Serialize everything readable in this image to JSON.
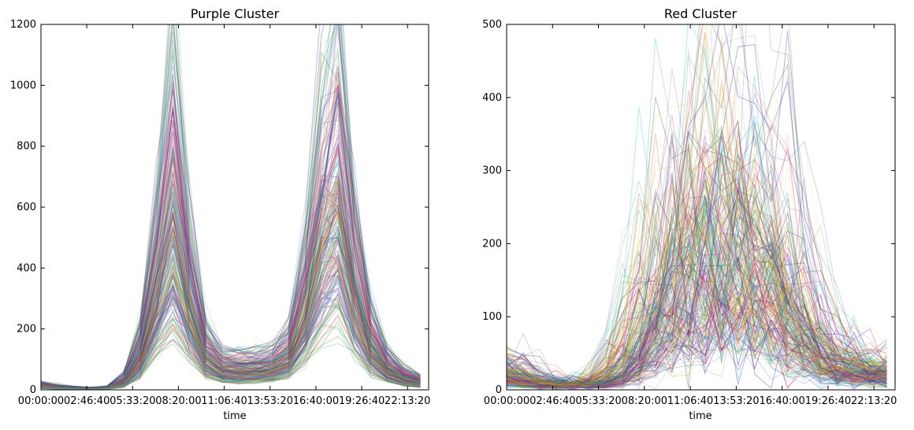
{
  "chart_data": [
    {
      "type": "line",
      "title": "Purple Cluster",
      "xlabel": "time",
      "ylabel": "",
      "x_tick_labels": [
        "00:00:00",
        "02:46:40",
        "05:33:20",
        "08:20:00",
        "11:06:40",
        "13:53:20",
        "16:40:00",
        "19:26:40",
        "22:13:20"
      ],
      "x_ticks_seconds": [
        0,
        10000,
        20000,
        30000,
        40000,
        50000,
        60000,
        70000,
        80000
      ],
      "xlim_seconds": [
        0,
        84600
      ],
      "y_ticks": [
        0,
        200,
        400,
        600,
        800,
        1000,
        1200
      ],
      "ylim": [
        0,
        1200
      ],
      "grid": false,
      "series_count_note": "many overlapping translucent series (one per station profile)",
      "x_sample_seconds": [
        0,
        3600,
        7200,
        10800,
        14400,
        18000,
        21600,
        25200,
        28800,
        32400,
        36000,
        39600,
        43200,
        46800,
        50400,
        54000,
        57600,
        61200,
        64800,
        68400,
        72000,
        75600,
        79200,
        82800
      ],
      "representative_series": [
        {
          "values": [
            12,
            8,
            5,
            4,
            6,
            25,
            110,
            320,
            560,
            300,
            110,
            70,
            65,
            68,
            75,
            110,
            250,
            520,
            640,
            330,
            150,
            70,
            40,
            25
          ]
        },
        {
          "values": [
            20,
            12,
            8,
            6,
            9,
            40,
            170,
            480,
            900,
            430,
            160,
            100,
            95,
            100,
            110,
            160,
            380,
            760,
            930,
            500,
            210,
            100,
            55,
            35
          ]
        },
        {
          "values": [
            8,
            5,
            3,
            3,
            4,
            15,
            70,
            200,
            300,
            180,
            70,
            45,
            40,
            42,
            48,
            70,
            160,
            300,
            380,
            200,
            90,
            45,
            25,
            15
          ]
        }
      ]
    },
    {
      "type": "line",
      "title": "Red Cluster",
      "xlabel": "time",
      "ylabel": "",
      "x_tick_labels": [
        "00:00:00",
        "02:46:40",
        "05:33:20",
        "08:20:00",
        "11:06:40",
        "13:53:20",
        "16:40:00",
        "19:26:40",
        "22:13:20"
      ],
      "x_ticks_seconds": [
        0,
        10000,
        20000,
        30000,
        40000,
        50000,
        60000,
        70000,
        80000
      ],
      "xlim_seconds": [
        0,
        84600
      ],
      "y_ticks": [
        0,
        100,
        200,
        300,
        400,
        500
      ],
      "ylim": [
        0,
        500
      ],
      "grid": false,
      "series_count_note": "many overlapping translucent series (one per station profile)",
      "x_sample_seconds": [
        0,
        3600,
        7200,
        10800,
        14400,
        18000,
        21600,
        25200,
        28800,
        32400,
        36000,
        39600,
        43200,
        46800,
        50400,
        54000,
        57600,
        61200,
        64800,
        68400,
        72000,
        75600,
        79200,
        82800
      ],
      "representative_series": [
        {
          "values": [
            25,
            15,
            10,
            7,
            6,
            8,
            15,
            35,
            70,
            110,
            140,
            165,
            180,
            190,
            185,
            170,
            150,
            120,
            80,
            50,
            35,
            28,
            25,
            22
          ]
        },
        {
          "values": [
            35,
            22,
            14,
            10,
            9,
            12,
            25,
            60,
            120,
            190,
            240,
            260,
            280,
            300,
            280,
            250,
            220,
            170,
            110,
            70,
            50,
            40,
            35,
            30
          ]
        },
        {
          "values": [
            12,
            8,
            5,
            4,
            4,
            5,
            9,
            18,
            35,
            55,
            70,
            80,
            90,
            95,
            90,
            80,
            70,
            55,
            40,
            28,
            20,
            16,
            13,
            11
          ]
        }
      ]
    }
  ]
}
